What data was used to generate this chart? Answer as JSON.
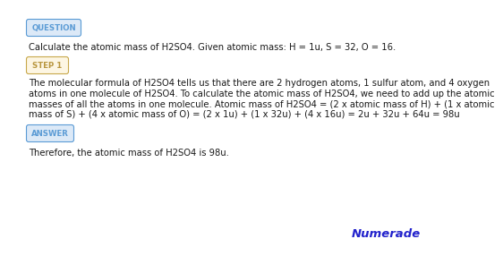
{
  "background_color": "#ffffff",
  "question_label": "QUESTION",
  "question_label_color": "#5b9bd5",
  "question_label_bg": "#dce9f7",
  "question_text": "Calculate the atomic mass of H2SO4. Given atomic mass: H = 1u, S = 32, O = 16.",
  "step_label": "STEP 1",
  "step_label_color": "#b8963e",
  "step_label_border": "#c8a84b",
  "step_label_bg": "#fdf6e3",
  "step_text_line1": "The molecular formula of H2SO4 tells us that there are 2 hydrogen atoms, 1 sulfur atom, and 4 oxygen",
  "step_text_line2": "atoms in one molecule of H2SO4. To calculate the atomic mass of H2SO4, we need to add up the atomic",
  "step_text_line3": "masses of all the atoms in one molecule. Atomic mass of H2SO4 = (2 x atomic mass of H) + (1 x atomic",
  "step_text_line4": "mass of S) + (4 x atomic mass of O) = (2 x 1u) + (1 x 32u) + (4 x 16u) = 2u + 32u + 64u = 98u",
  "answer_label": "ANSWER",
  "answer_label_color": "#5b9bd5",
  "answer_label_bg": "#dce9f7",
  "answer_text": "Therefore, the atomic mass of H2SO4 is 98u.",
  "numerade_text": "Numerade",
  "numerade_color": "#2222cc",
  "text_color": "#1a1a1a",
  "font_size": 7.2,
  "label_font_size": 6.2
}
